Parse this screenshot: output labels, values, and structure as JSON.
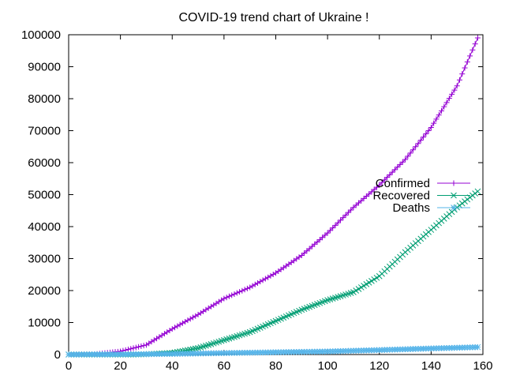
{
  "chart_data": {
    "type": "line",
    "title": "COVID-19 trend chart of Ukraine !",
    "xlabel": "",
    "ylabel": "",
    "xlim": [
      0,
      160
    ],
    "ylim": [
      0,
      100000
    ],
    "x_ticks": [
      "0",
      "20",
      "40",
      "60",
      "80",
      "100",
      "120",
      "140",
      "160"
    ],
    "y_ticks": [
      "0",
      "10000",
      "20000",
      "30000",
      "40000",
      "50000",
      "60000",
      "70000",
      "80000",
      "90000",
      "100000"
    ],
    "grid": false,
    "legend_position": "right",
    "x_step": 1,
    "series": [
      {
        "name": "Confirmed",
        "color": "#9400d3",
        "marker": "plus",
        "keypoints": [
          [
            0,
            0
          ],
          [
            10,
            100
          ],
          [
            20,
            1000
          ],
          [
            30,
            3000
          ],
          [
            40,
            8000
          ],
          [
            50,
            12500
          ],
          [
            60,
            17500
          ],
          [
            70,
            21000
          ],
          [
            80,
            25500
          ],
          [
            90,
            31000
          ],
          [
            100,
            38000
          ],
          [
            110,
            46000
          ],
          [
            120,
            53000
          ],
          [
            130,
            61000
          ],
          [
            140,
            71000
          ],
          [
            150,
            84000
          ],
          [
            158,
            99000
          ]
        ]
      },
      {
        "name": "Recovered",
        "color": "#009e73",
        "marker": "x",
        "keypoints": [
          [
            0,
            0
          ],
          [
            25,
            0
          ],
          [
            30,
            100
          ],
          [
            40,
            500
          ],
          [
            50,
            2000
          ],
          [
            60,
            4500
          ],
          [
            70,
            7000
          ],
          [
            80,
            10500
          ],
          [
            90,
            14000
          ],
          [
            100,
            17000
          ],
          [
            110,
            19500
          ],
          [
            120,
            24500
          ],
          [
            130,
            32000
          ],
          [
            140,
            39000
          ],
          [
            150,
            46000
          ],
          [
            158,
            51000
          ]
        ]
      },
      {
        "name": "Deaths",
        "color": "#56b4e9",
        "marker": "star",
        "keypoints": [
          [
            0,
            0
          ],
          [
            20,
            50
          ],
          [
            40,
            200
          ],
          [
            60,
            450
          ],
          [
            80,
            700
          ],
          [
            100,
            950
          ],
          [
            120,
            1400
          ],
          [
            140,
            1900
          ],
          [
            158,
            2300
          ]
        ]
      }
    ]
  }
}
